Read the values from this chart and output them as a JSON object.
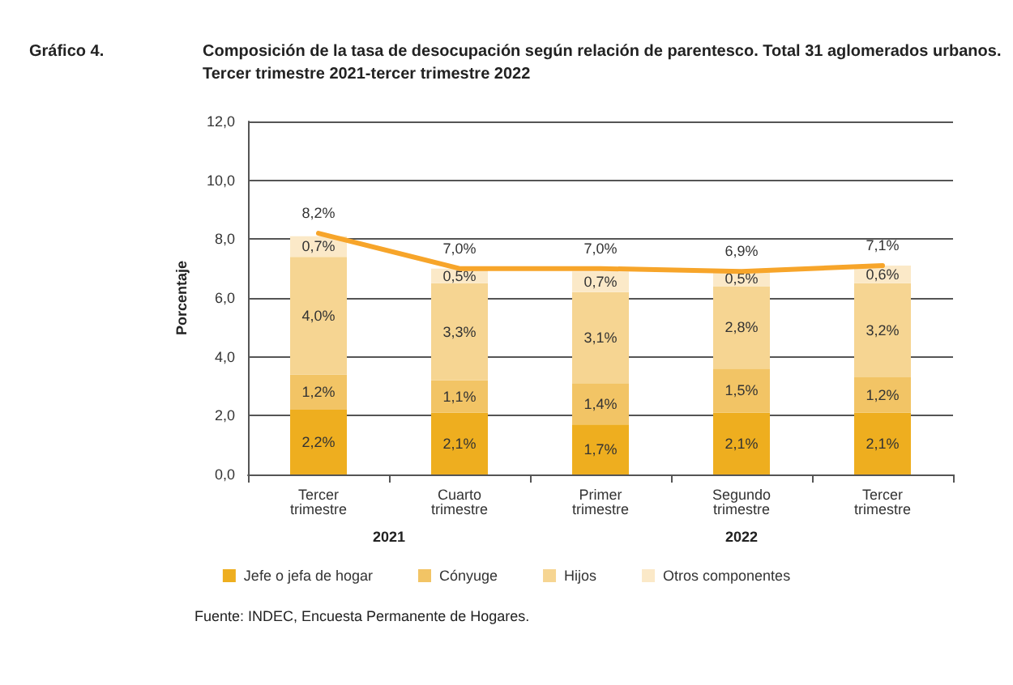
{
  "chart_data": {
    "type": "bar",
    "stacked": true,
    "title": "Composición de la tasa de desocupación según relación de parentesco. Total 31 aglomerados urbanos.",
    "subtitle": "Tercer trimestre 2021-tercer trimestre 2022",
    "ylabel": "Porcentaje",
    "annotations": [
      "Gráfico 4.",
      "2021",
      "2022",
      "Fuente: INDEC, Encuesta Permanente de Hogares."
    ],
    "categories": [
      "Tercer trimestre",
      "Cuarto trimestre",
      "Primer trimestre",
      "Segundo trimestre",
      "Tercer trimestre"
    ],
    "series": [
      {
        "name": "Jefe o jefa de hogar",
        "color": "#eeae1f",
        "values": [
          2.2,
          2.1,
          1.7,
          2.1,
          2.1
        ],
        "value_labels": [
          "2,2%",
          "2,1%",
          "1,7%",
          "2,1%",
          "2,1%"
        ]
      },
      {
        "name": "Cónyuge",
        "color": "#f2c465",
        "values": [
          1.2,
          1.1,
          1.4,
          1.5,
          1.2
        ],
        "value_labels": [
          "1,2%",
          "1,1%",
          "1,4%",
          "1,5%",
          "1,2%"
        ]
      },
      {
        "name": "Hijos",
        "color": "#f6d592",
        "values": [
          4.0,
          3.3,
          3.1,
          2.8,
          3.2
        ],
        "value_labels": [
          "4,0%",
          "3,3%",
          "3,1%",
          "2,8%",
          "3,2%"
        ]
      },
      {
        "name": "Otros componentes",
        "color": "#fbe9c8",
        "values": [
          0.7,
          0.5,
          0.7,
          0.5,
          0.6
        ],
        "value_labels": [
          "0,7%",
          "0,5%",
          "0,7%",
          "0,5%",
          "0,6%"
        ]
      },
      {
        "type": "line",
        "color": "#f7a52a",
        "values": [
          8.2,
          7.0,
          7.0,
          6.9,
          7.1
        ],
        "value_labels": [
          "8,2%",
          "7,0%",
          "7,0%",
          "6,9%",
          "7,1%"
        ]
      }
    ],
    "ylim": [
      0,
      12
    ],
    "yticks": [
      {
        "value": 0,
        "label": "0,0"
      },
      {
        "value": 2,
        "label": "2,0"
      },
      {
        "value": 4,
        "label": "4,0"
      },
      {
        "value": 6,
        "label": "6,0"
      },
      {
        "value": 8,
        "label": "8,0"
      },
      {
        "value": 10,
        "label": "10,0"
      },
      {
        "value": 12,
        "label": "12,0"
      }
    ],
    "grid": "y",
    "legend": "bottom",
    "marker": "none"
  }
}
